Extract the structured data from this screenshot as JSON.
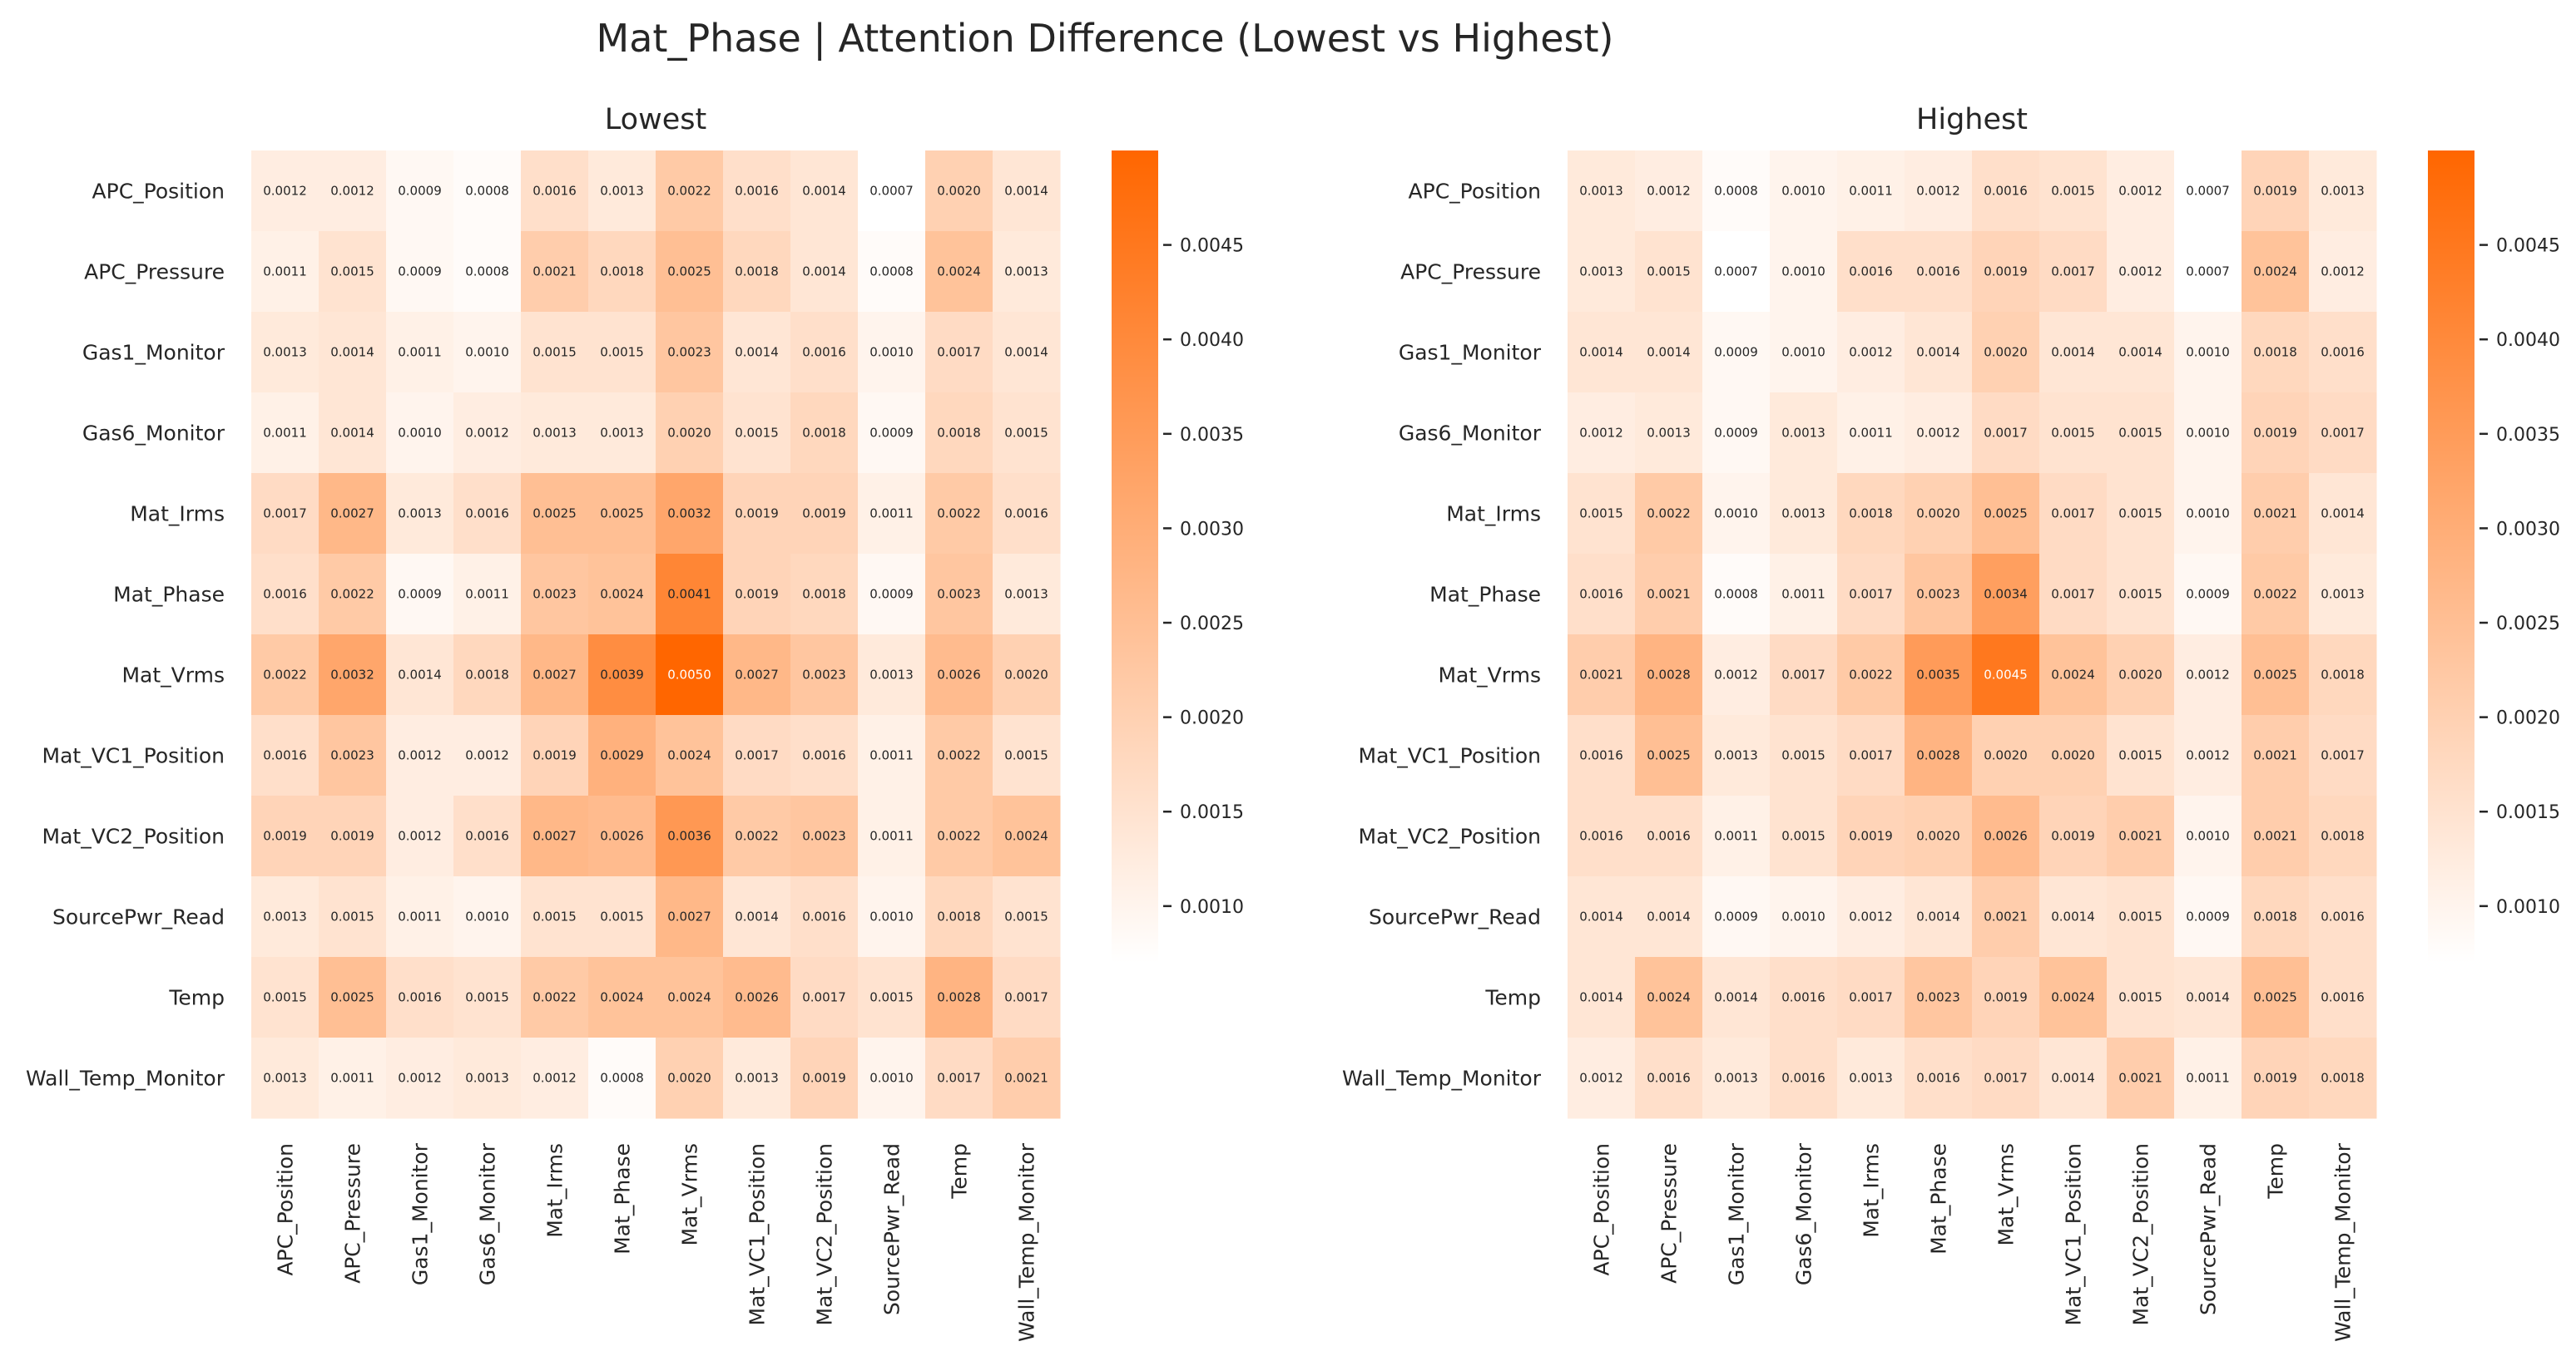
{
  "title": "Mat_Phase | Attention Difference (Lowest vs Highest)",
  "colors": {
    "low": "#ffffff",
    "high": "#ff6600",
    "text_dark": "#262626",
    "text_light": "#ffffff"
  },
  "chart_data": [
    {
      "type": "heatmap",
      "title": "Lowest",
      "rows": [
        "APC_Position",
        "APC_Pressure",
        "Gas1_Monitor",
        "Gas6_Monitor",
        "Mat_Irms",
        "Mat_Phase",
        "Mat_Vrms",
        "Mat_VC1_Position",
        "Mat_VC2_Position",
        "SourcePwr_Read",
        "Temp",
        "Wall_Temp_Monitor"
      ],
      "columns": [
        "APC_Position",
        "APC_Pressure",
        "Gas1_Monitor",
        "Gas6_Monitor",
        "Mat_Irms",
        "Mat_Phase",
        "Mat_Vrms",
        "Mat_VC1_Position",
        "Mat_VC2_Position",
        "SourcePwr_Read",
        "Temp",
        "Wall_Temp_Monitor"
      ],
      "values": [
        [
          0.0012,
          0.0012,
          0.0009,
          0.0008,
          0.0016,
          0.0013,
          0.0022,
          0.0016,
          0.0014,
          0.0007,
          0.002,
          0.0014
        ],
        [
          0.0011,
          0.0015,
          0.0009,
          0.0008,
          0.0021,
          0.0018,
          0.0025,
          0.0018,
          0.0014,
          0.0008,
          0.0024,
          0.0013
        ],
        [
          0.0013,
          0.0014,
          0.0011,
          0.001,
          0.0015,
          0.0015,
          0.0023,
          0.0014,
          0.0016,
          0.001,
          0.0017,
          0.0014
        ],
        [
          0.0011,
          0.0014,
          0.001,
          0.0012,
          0.0013,
          0.0013,
          0.002,
          0.0015,
          0.0018,
          0.0009,
          0.0018,
          0.0015
        ],
        [
          0.0017,
          0.0027,
          0.0013,
          0.0016,
          0.0025,
          0.0025,
          0.0032,
          0.0019,
          0.0019,
          0.0011,
          0.0022,
          0.0016
        ],
        [
          0.0016,
          0.0022,
          0.0009,
          0.0011,
          0.0023,
          0.0024,
          0.0041,
          0.0019,
          0.0018,
          0.0009,
          0.0023,
          0.0013
        ],
        [
          0.0022,
          0.0032,
          0.0014,
          0.0018,
          0.0027,
          0.0039,
          0.005,
          0.0027,
          0.0023,
          0.0013,
          0.0026,
          0.002
        ],
        [
          0.0016,
          0.0023,
          0.0012,
          0.0012,
          0.0019,
          0.0029,
          0.0024,
          0.0017,
          0.0016,
          0.0011,
          0.0022,
          0.0015
        ],
        [
          0.0019,
          0.0019,
          0.0012,
          0.0016,
          0.0027,
          0.0026,
          0.0036,
          0.0022,
          0.0023,
          0.0011,
          0.0022,
          0.0024
        ],
        [
          0.0013,
          0.0015,
          0.0011,
          0.001,
          0.0015,
          0.0015,
          0.0027,
          0.0014,
          0.0016,
          0.001,
          0.0018,
          0.0015
        ],
        [
          0.0015,
          0.0025,
          0.0016,
          0.0015,
          0.0022,
          0.0024,
          0.0024,
          0.0026,
          0.0017,
          0.0015,
          0.0028,
          0.0017
        ],
        [
          0.0013,
          0.0011,
          0.0012,
          0.0013,
          0.0012,
          0.0008,
          0.002,
          0.0013,
          0.0019,
          0.001,
          0.0017,
          0.0021
        ]
      ],
      "vmin": 0.0007,
      "vmax": 0.005,
      "colorbar_ticks": [
        "0.0010",
        "0.0015",
        "0.0020",
        "0.0025",
        "0.0030",
        "0.0035",
        "0.0040",
        "0.0045"
      ]
    },
    {
      "type": "heatmap",
      "title": "Highest",
      "rows": [
        "APC_Position",
        "APC_Pressure",
        "Gas1_Monitor",
        "Gas6_Monitor",
        "Mat_Irms",
        "Mat_Phase",
        "Mat_Vrms",
        "Mat_VC1_Position",
        "Mat_VC2_Position",
        "SourcePwr_Read",
        "Temp",
        "Wall_Temp_Monitor"
      ],
      "columns": [
        "APC_Position",
        "APC_Pressure",
        "Gas1_Monitor",
        "Gas6_Monitor",
        "Mat_Irms",
        "Mat_Phase",
        "Mat_Vrms",
        "Mat_VC1_Position",
        "Mat_VC2_Position",
        "SourcePwr_Read",
        "Temp",
        "Wall_Temp_Monitor"
      ],
      "values": [
        [
          0.0013,
          0.0012,
          0.0008,
          0.001,
          0.0011,
          0.0012,
          0.0016,
          0.0015,
          0.0012,
          0.0007,
          0.0019,
          0.0013
        ],
        [
          0.0013,
          0.0015,
          0.0007,
          0.001,
          0.0016,
          0.0016,
          0.0019,
          0.0017,
          0.0012,
          0.0007,
          0.0024,
          0.0012
        ],
        [
          0.0014,
          0.0014,
          0.0009,
          0.001,
          0.0012,
          0.0014,
          0.002,
          0.0014,
          0.0014,
          0.001,
          0.0018,
          0.0016
        ],
        [
          0.0012,
          0.0013,
          0.0009,
          0.0013,
          0.0011,
          0.0012,
          0.0017,
          0.0015,
          0.0015,
          0.001,
          0.0019,
          0.0017
        ],
        [
          0.0015,
          0.0022,
          0.001,
          0.0013,
          0.0018,
          0.002,
          0.0025,
          0.0017,
          0.0015,
          0.001,
          0.0021,
          0.0014
        ],
        [
          0.0016,
          0.0021,
          0.0008,
          0.0011,
          0.0017,
          0.0023,
          0.0034,
          0.0017,
          0.0015,
          0.0009,
          0.0022,
          0.0013
        ],
        [
          0.0021,
          0.0028,
          0.0012,
          0.0017,
          0.0022,
          0.0035,
          0.0045,
          0.0024,
          0.002,
          0.0012,
          0.0025,
          0.0018
        ],
        [
          0.0016,
          0.0025,
          0.0013,
          0.0015,
          0.0017,
          0.0028,
          0.002,
          0.002,
          0.0015,
          0.0012,
          0.0021,
          0.0017
        ],
        [
          0.0016,
          0.0016,
          0.0011,
          0.0015,
          0.0019,
          0.002,
          0.0026,
          0.0019,
          0.0021,
          0.001,
          0.0021,
          0.0018
        ],
        [
          0.0014,
          0.0014,
          0.0009,
          0.001,
          0.0012,
          0.0014,
          0.0021,
          0.0014,
          0.0015,
          0.0009,
          0.0018,
          0.0016
        ],
        [
          0.0014,
          0.0024,
          0.0014,
          0.0016,
          0.0017,
          0.0023,
          0.0019,
          0.0024,
          0.0015,
          0.0014,
          0.0025,
          0.0016
        ],
        [
          0.0012,
          0.0016,
          0.0013,
          0.0016,
          0.0013,
          0.0016,
          0.0017,
          0.0014,
          0.0021,
          0.0011,
          0.0019,
          0.0018
        ]
      ],
      "vmin": 0.0007,
      "vmax": 0.005,
      "colorbar_ticks": [
        "0.0010",
        "0.0015",
        "0.0020",
        "0.0025",
        "0.0030",
        "0.0035",
        "0.0040",
        "0.0045"
      ]
    }
  ]
}
